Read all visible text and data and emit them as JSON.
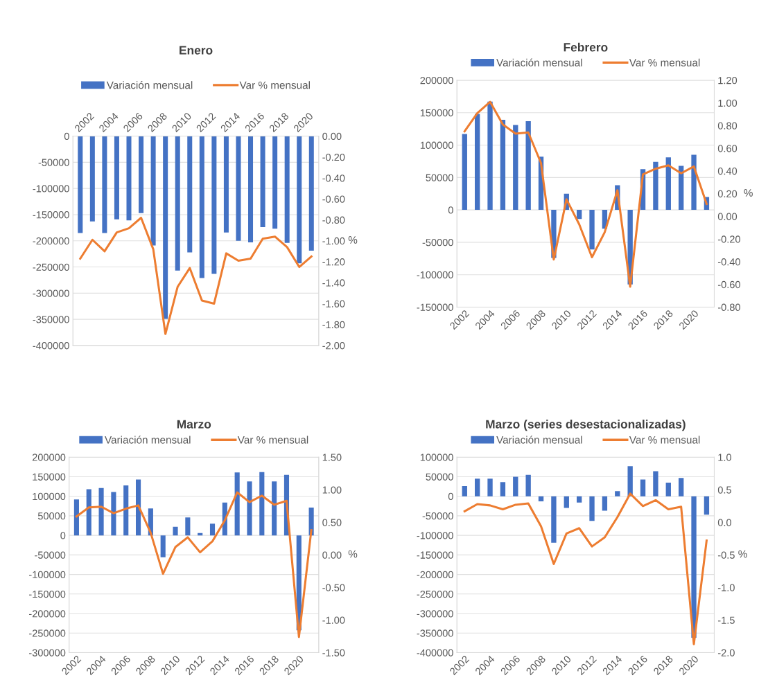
{
  "chart_data": [
    {
      "type": "bar",
      "title": "Enero",
      "y2label": "%",
      "legend": "top",
      "grid": "y",
      "categories": [
        "2002",
        null,
        "2004",
        null,
        "2006",
        null,
        "2008",
        null,
        "2010",
        null,
        "2012",
        null,
        "2014",
        null,
        "2016",
        null,
        "2018",
        null,
        "2020",
        null
      ],
      "ylim": [
        -400000,
        0
      ],
      "yticks": [
        -400000,
        -350000,
        -300000,
        -250000,
        -200000,
        -150000,
        -100000,
        -50000,
        0
      ],
      "y2lim": [
        -2.0,
        0.0
      ],
      "y2ticks": [
        {
          "value": -2.0,
          "label": "-2.00"
        },
        {
          "value": -1.8,
          "label": "-1.80"
        },
        {
          "value": -1.6,
          "label": "-1.60"
        },
        {
          "value": -1.4,
          "label": "-1.40"
        },
        {
          "value": -1.2,
          "label": "-1.20"
        },
        {
          "value": -1.0,
          "label": "-1.00"
        },
        {
          "value": -0.8,
          "label": "-0.80"
        },
        {
          "value": -0.6,
          "label": "-0.60"
        },
        {
          "value": -0.4,
          "label": "-0.40"
        },
        {
          "value": -0.2,
          "label": "-0.20"
        },
        {
          "value": 0.0,
          "label": "0.00"
        }
      ],
      "series": [
        {
          "name": "Variación mensual",
          "color": "#4472c4",
          "values": [
            -185000,
            -163000,
            -185000,
            -159000,
            -161000,
            -147000,
            -209000,
            -349000,
            -257000,
            -222000,
            -271000,
            -263000,
            -184000,
            -200000,
            -203000,
            -174000,
            -177000,
            -204000,
            -243000,
            -219000
          ]
        },
        {
          "name": "Var % mensual",
          "type": "line",
          "axis": "y2",
          "color": "#ed7d31",
          "values": [
            -1.17,
            -0.99,
            -1.1,
            -0.92,
            -0.88,
            -0.78,
            -1.08,
            -1.89,
            -1.44,
            -1.26,
            -1.57,
            -1.6,
            -1.12,
            -1.19,
            -1.17,
            -0.98,
            -0.96,
            -1.06,
            -1.25,
            -1.15
          ]
        }
      ]
    },
    {
      "type": "bar",
      "title": "Febrero",
      "y2label": "%",
      "legend": "top",
      "grid": "y",
      "categories": [
        "2002",
        null,
        "2004",
        null,
        "2006",
        null,
        "2008",
        null,
        "2010",
        null,
        "2012",
        null,
        "2014",
        null,
        "2016",
        null,
        "2018",
        null,
        "2020",
        null
      ],
      "ylim": [
        -150000,
        200000
      ],
      "yticks": [
        -150000,
        -100000,
        -50000,
        0,
        50000,
        100000,
        150000,
        200000
      ],
      "y2lim": [
        -0.8,
        1.2
      ],
      "y2ticks": [
        {
          "value": -0.8,
          "label": "-0.80"
        },
        {
          "value": -0.6,
          "label": "-0.60"
        },
        {
          "value": -0.4,
          "label": "-0.40"
        },
        {
          "value": -0.2,
          "label": "-0.20"
        },
        {
          "value": 0.0,
          "label": "0.00"
        },
        {
          "value": 0.2,
          "label": "0.20"
        },
        {
          "value": 0.4,
          "label": "0.40"
        },
        {
          "value": 0.6,
          "label": "0.60"
        },
        {
          "value": 0.8,
          "label": "0.80"
        },
        {
          "value": 1.0,
          "label": "1.00"
        },
        {
          "value": 1.2,
          "label": "1.20"
        }
      ],
      "series": [
        {
          "name": "Variación mensual",
          "color": "#4472c4",
          "values": [
            117000,
            148000,
            167000,
            139000,
            131000,
            137000,
            82000,
            -74000,
            25000,
            -14000,
            -61000,
            -29000,
            38000,
            -115000,
            63000,
            74000,
            81000,
            68000,
            85000,
            20000
          ]
        },
        {
          "name": "Var % mensual",
          "type": "line",
          "axis": "y2",
          "color": "#ed7d31",
          "values": [
            0.75,
            0.91,
            1.01,
            0.81,
            0.73,
            0.74,
            0.47,
            -0.38,
            0.15,
            -0.07,
            -0.36,
            -0.14,
            0.23,
            -0.62,
            0.37,
            0.42,
            0.45,
            0.38,
            0.44,
            0.11
          ]
        }
      ]
    },
    {
      "type": "bar",
      "title": "Marzo",
      "y2label": "%",
      "legend": "top",
      "grid": "y",
      "categories": [
        "2002",
        null,
        "2004",
        null,
        "2006",
        null,
        "2008",
        null,
        "2010",
        null,
        "2012",
        null,
        "2014",
        null,
        "2016",
        null,
        "2018",
        null,
        "2020",
        null
      ],
      "ylim": [
        -300000,
        200000
      ],
      "yticks": [
        -300000,
        -250000,
        -200000,
        -150000,
        -100000,
        -50000,
        0,
        50000,
        100000,
        150000,
        200000
      ],
      "y2lim": [
        -1.5,
        1.5
      ],
      "y2ticks": [
        {
          "value": -1.5,
          "label": "-1.50"
        },
        {
          "value": -1.0,
          "label": "-1.00"
        },
        {
          "value": -0.5,
          "label": "-0.50"
        },
        {
          "value": 0.0,
          "label": "0.00"
        },
        {
          "value": 0.5,
          "label": "0.50"
        },
        {
          "value": 1.0,
          "label": "1.00"
        },
        {
          "value": 1.5,
          "label": "1.50"
        }
      ],
      "series": [
        {
          "name": "Variación mensual",
          "color": "#4472c4",
          "values": [
            92000,
            118000,
            121000,
            111000,
            128000,
            143000,
            69000,
            -56000,
            22000,
            46000,
            6000,
            30000,
            84000,
            161000,
            138000,
            162000,
            138000,
            155000,
            -243000,
            71000
          ]
        },
        {
          "name": "Var % mensual",
          "type": "line",
          "axis": "y2",
          "color": "#ed7d31",
          "values": [
            0.59,
            0.73,
            0.74,
            0.64,
            0.71,
            0.76,
            0.34,
            -0.29,
            0.12,
            0.27,
            0.04,
            0.21,
            0.53,
            0.96,
            0.81,
            0.91,
            0.77,
            0.83,
            -1.26,
            0.38
          ]
        }
      ]
    },
    {
      "type": "bar",
      "title": "Marzo (series desestacionalizadas)",
      "y2label": "%",
      "legend": "top",
      "grid": "y",
      "categories": [
        "2002",
        null,
        "2004",
        null,
        "2006",
        null,
        "2008",
        null,
        "2010",
        null,
        "2012",
        null,
        "2014",
        null,
        "2016",
        null,
        "2018",
        null,
        "2020",
        null
      ],
      "ylim": [
        -400000,
        100000
      ],
      "yticks": [
        -400000,
        -350000,
        -300000,
        -250000,
        -200000,
        -150000,
        -100000,
        -50000,
        0,
        50000,
        100000
      ],
      "y2lim": [
        -2.0,
        1.0
      ],
      "y2ticks": [
        {
          "value": -2.0,
          "label": "-2.0"
        },
        {
          "value": -1.5,
          "label": "-1.5"
        },
        {
          "value": -1.0,
          "label": "-1.0"
        },
        {
          "value": -0.5,
          "label": "-0.5"
        },
        {
          "value": 0.0,
          "label": "0.0"
        },
        {
          "value": 0.5,
          "label": "0.5"
        },
        {
          "value": 1.0,
          "label": "1.0"
        }
      ],
      "series": [
        {
          "name": "Variación mensual",
          "color": "#4472c4",
          "values": [
            26000,
            45000,
            45000,
            36000,
            50000,
            55000,
            -13000,
            -119000,
            -30000,
            -16000,
            -63000,
            -37000,
            13000,
            77000,
            43000,
            64000,
            35000,
            47000,
            -362000,
            -47000
          ]
        },
        {
          "name": "Var % mensual",
          "type": "line",
          "axis": "y2",
          "color": "#ed7d31",
          "values": [
            0.17,
            0.28,
            0.26,
            0.2,
            0.27,
            0.29,
            -0.06,
            -0.64,
            -0.17,
            -0.09,
            -0.37,
            -0.23,
            0.08,
            0.44,
            0.25,
            0.34,
            0.2,
            0.24,
            -1.87,
            -0.28
          ]
        }
      ]
    }
  ]
}
